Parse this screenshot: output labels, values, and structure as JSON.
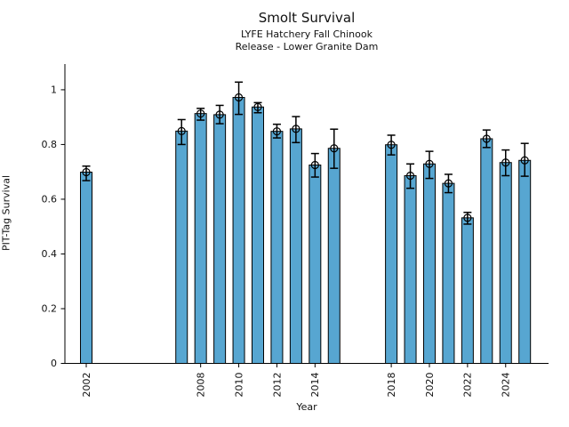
{
  "header": {
    "title": "Smolt Survival",
    "subtitle_line1": "LYFE Hatchery Fall Chinook",
    "subtitle_line2": "Release - Lower Granite Dam"
  },
  "chart_data": {
    "type": "bar",
    "title": "Smolt Survival",
    "subtitle": [
      "LYFE Hatchery Fall Chinook",
      "Release - Lower Granite Dam"
    ],
    "xlabel": "Year",
    "ylabel": "PIT-Tag Survival",
    "xlim": [
      2000.88,
      2026.25
    ],
    "ylim": [
      0,
      1.094
    ],
    "x_ticks": [
      2002,
      2008,
      2010,
      2012,
      2014,
      2018,
      2020,
      2022,
      2024
    ],
    "y_ticks": [
      0,
      0.2,
      0.4,
      0.6,
      0.8,
      1
    ],
    "y_tick_labels": [
      "0",
      "0.2",
      "0.4",
      "0.6",
      "0.8",
      "1"
    ],
    "grid": false,
    "legend": null,
    "bar_color": "#57a6d1",
    "bar_edge_color": "#000000",
    "error_color": "#000000",
    "marker": "open-circle",
    "points": [
      {
        "year": 2002,
        "value": 0.699,
        "err_lo": 0.668,
        "err_hi": 0.721
      },
      {
        "year": 2007,
        "value": 0.849,
        "err_lo": 0.8,
        "err_hi": 0.891
      },
      {
        "year": 2008,
        "value": 0.913,
        "err_lo": 0.889,
        "err_hi": 0.932
      },
      {
        "year": 2009,
        "value": 0.909,
        "err_lo": 0.876,
        "err_hi": 0.943
      },
      {
        "year": 2010,
        "value": 0.972,
        "err_lo": 0.91,
        "err_hi": 1.028
      },
      {
        "year": 2011,
        "value": 0.937,
        "err_lo": 0.916,
        "err_hi": 0.953
      },
      {
        "year": 2012,
        "value": 0.848,
        "err_lo": 0.824,
        "err_hi": 0.874
      },
      {
        "year": 2013,
        "value": 0.857,
        "err_lo": 0.807,
        "err_hi": 0.902
      },
      {
        "year": 2014,
        "value": 0.725,
        "err_lo": 0.681,
        "err_hi": 0.767
      },
      {
        "year": 2015,
        "value": 0.786,
        "err_lo": 0.713,
        "err_hi": 0.856
      },
      {
        "year": 2018,
        "value": 0.799,
        "err_lo": 0.762,
        "err_hi": 0.834
      },
      {
        "year": 2019,
        "value": 0.686,
        "err_lo": 0.64,
        "err_hi": 0.729
      },
      {
        "year": 2020,
        "value": 0.729,
        "err_lo": 0.676,
        "err_hi": 0.775
      },
      {
        "year": 2021,
        "value": 0.658,
        "err_lo": 0.624,
        "err_hi": 0.691
      },
      {
        "year": 2022,
        "value": 0.532,
        "err_lo": 0.509,
        "err_hi": 0.552
      },
      {
        "year": 2023,
        "value": 0.821,
        "err_lo": 0.789,
        "err_hi": 0.853
      },
      {
        "year": 2024,
        "value": 0.734,
        "err_lo": 0.686,
        "err_hi": 0.78
      },
      {
        "year": 2025,
        "value": 0.742,
        "err_lo": 0.684,
        "err_hi": 0.804
      }
    ]
  }
}
